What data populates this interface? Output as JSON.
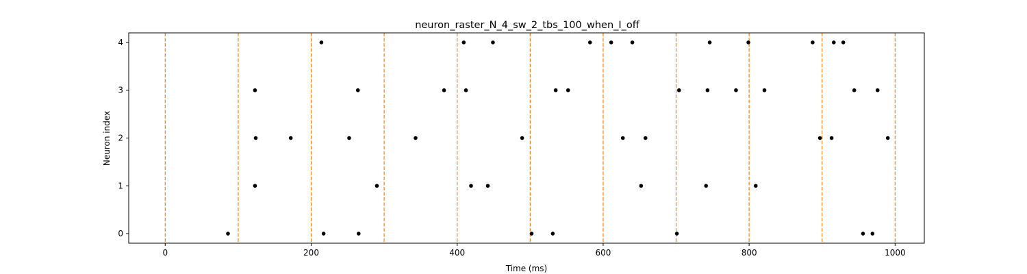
{
  "chart_data": {
    "type": "scatter",
    "title": "neuron_raster_N_4_sw_2_tbs_100_when_I_off",
    "xlabel": "Time (ms)",
    "ylabel": "Neuron index",
    "xlim": [
      -50,
      1040
    ],
    "ylim": [
      -0.2,
      4.2
    ],
    "xticks": [
      0,
      200,
      400,
      600,
      800,
      1000
    ],
    "yticks": [
      0,
      1,
      2,
      3,
      4
    ],
    "grid": false,
    "legend": "none",
    "marker_color": "#000000",
    "vline_color": "#ff7f0e",
    "vlines": [
      0,
      100,
      200,
      300,
      400,
      500,
      600,
      700,
      800,
      900,
      1000
    ],
    "spikes": [
      {
        "neuron": 0,
        "times": [
          86,
          217,
          265,
          502,
          531,
          701,
          956,
          969
        ]
      },
      {
        "neuron": 1,
        "times": [
          123,
          290,
          419,
          442,
          652,
          741,
          809
        ]
      },
      {
        "neuron": 2,
        "times": [
          124,
          172,
          252,
          343,
          489,
          627,
          658,
          897,
          913,
          990
        ]
      },
      {
        "neuron": 3,
        "times": [
          123,
          264,
          382,
          412,
          535,
          552,
          704,
          743,
          782,
          821,
          944,
          976
        ]
      },
      {
        "neuron": 4,
        "times": [
          214,
          409,
          449,
          582,
          611,
          640,
          746,
          799,
          887,
          916,
          929
        ]
      }
    ]
  }
}
